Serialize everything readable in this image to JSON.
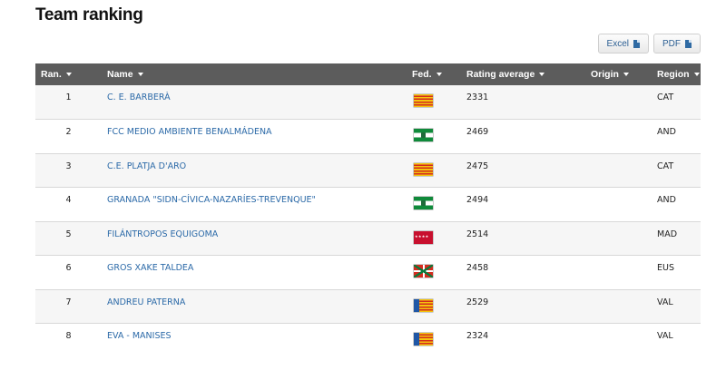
{
  "page": {
    "title": "Team ranking"
  },
  "export": {
    "excel_label": "Excel",
    "pdf_label": "PDF"
  },
  "table": {
    "headers": {
      "rank": "Ran.",
      "name": "Name",
      "fed": "Fed.",
      "rating": "Rating average",
      "origin": "Origin",
      "region": "Region"
    },
    "rows": [
      {
        "rank": "1",
        "name": "C. E. BARBERÀ",
        "flag": "cat",
        "rating": "2331",
        "origin": "",
        "region": "CAT"
      },
      {
        "rank": "2",
        "name": "FCC MEDIO AMBIENTE BENALMÁDENA",
        "flag": "and",
        "rating": "2469",
        "origin": "",
        "region": "AND"
      },
      {
        "rank": "3",
        "name": "C.E. PLATJA D'ARO",
        "flag": "cat",
        "rating": "2475",
        "origin": "",
        "region": "CAT"
      },
      {
        "rank": "4",
        "name": "GRANADA \"SIDN-CÍVICA-NAZARÍES-TREVENQUE\"",
        "flag": "and",
        "rating": "2494",
        "origin": "",
        "region": "AND"
      },
      {
        "rank": "5",
        "name": "FILÁNTROPOS EQUIGOMA",
        "flag": "mad",
        "rating": "2514",
        "origin": "",
        "region": "MAD"
      },
      {
        "rank": "6",
        "name": "GROS XAKE TALDEA",
        "flag": "eus",
        "rating": "2458",
        "origin": "",
        "region": "EUS"
      },
      {
        "rank": "7",
        "name": "ANDREU PATERNA",
        "flag": "val",
        "rating": "2529",
        "origin": "",
        "region": "VAL"
      },
      {
        "rank": "8",
        "name": "EVA - MANISES",
        "flag": "val",
        "rating": "2324",
        "origin": "",
        "region": "VAL"
      }
    ]
  }
}
